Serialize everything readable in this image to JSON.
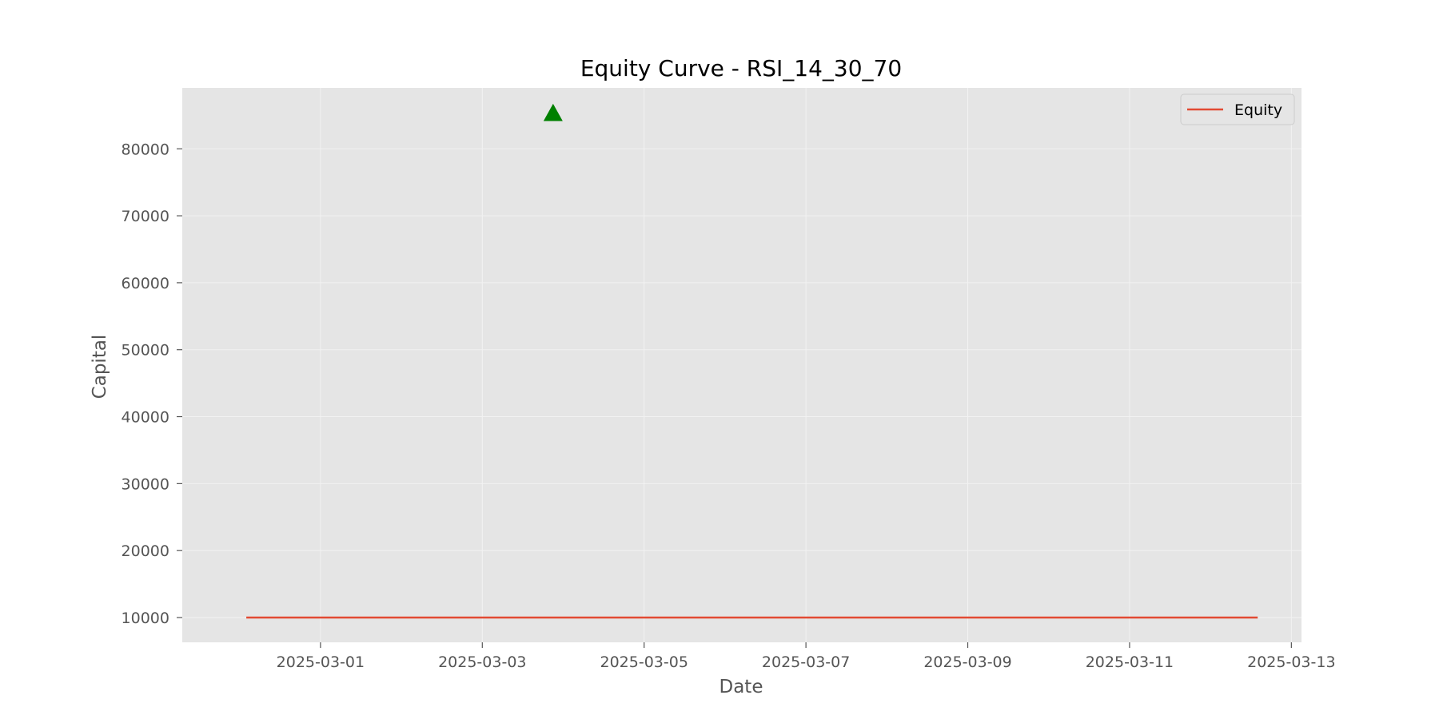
{
  "chart_data": {
    "type": "line",
    "title": "Equity Curve - RSI_14_30_70",
    "xlabel": "Date",
    "ylabel": "Capital",
    "x_ticks": [
      "2025-03-01",
      "2025-03-03",
      "2025-03-05",
      "2025-03-07",
      "2025-03-09",
      "2025-03-11",
      "2025-03-13"
    ],
    "y_ticks": [
      10000,
      20000,
      30000,
      40000,
      50000,
      60000,
      70000,
      80000
    ],
    "xlim": [
      "2025-02-27T07:00",
      "2025-03-13T03:00"
    ],
    "ylim": [
      6300,
      89100
    ],
    "grid": true,
    "legend_position": "top-right",
    "series": [
      {
        "name": "Equity",
        "color": "#E24A33",
        "x": [
          "2025-02-28T02:00",
          "2025-03-12T14:00"
        ],
        "y": [
          10000,
          10000
        ]
      }
    ],
    "markers": [
      {
        "shape": "triangle-up",
        "color": "#008000",
        "x": "2025-03-03T21:00",
        "y": 85300
      }
    ],
    "colors": {
      "plot_background": "#E5E5E5",
      "grid": "#F2F2F2"
    }
  }
}
